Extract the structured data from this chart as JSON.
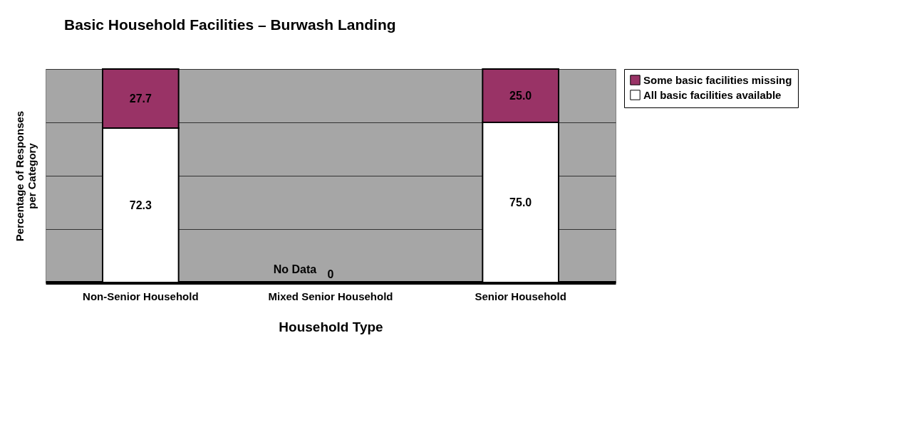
{
  "chart_data": {
    "type": "bar",
    "stacked": true,
    "title": "Basic Household Facilities – Burwash Landing",
    "xlabel": "Household Type",
    "ylabel": "Percentage of Responses\nper Category",
    "categories": [
      "Non-Senior  Household",
      "Mixed Senior Household",
      "Senior Household"
    ],
    "series": [
      {
        "name": "All basic facilities available",
        "color": "#ffffff",
        "values": [
          72.3,
          0,
          75.0
        ],
        "value_labels": [
          "72.3",
          "0",
          "75.0"
        ]
      },
      {
        "name": "Some basic facilities missing",
        "color": "#993366",
        "values": [
          27.7,
          0,
          25.0
        ],
        "value_labels": [
          "27.7",
          null,
          "25.0"
        ]
      }
    ],
    "ylim": [
      0,
      100
    ],
    "yticks": [
      {
        "value": 0,
        "label": null
      },
      {
        "value": 25,
        "label": null
      },
      {
        "value": 50,
        "label": null
      },
      {
        "value": 75,
        "label": null
      },
      {
        "value": 100,
        "label": null
      }
    ],
    "tick_labels": "x",
    "grid": "y",
    "legend": "right",
    "annotations": [
      {
        "text": "No Data",
        "x": "Mixed Senior Household",
        "y": 0
      }
    ]
  }
}
